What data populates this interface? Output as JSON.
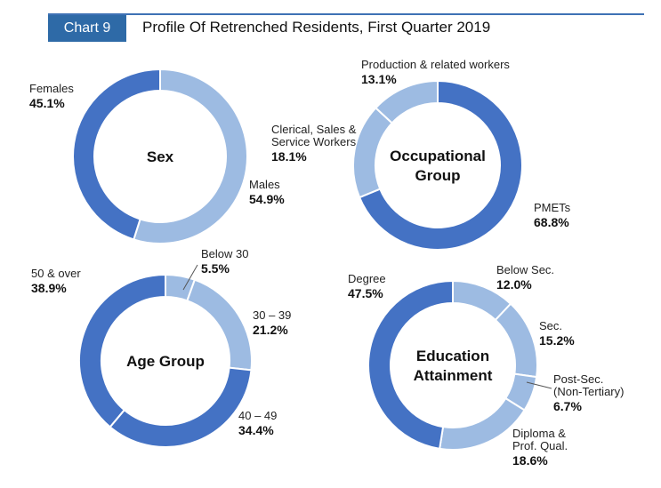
{
  "header": {
    "badge": "Chart 9",
    "title": "Profile Of Retrenched Residents, First Quarter 2019"
  },
  "colors": {
    "dark": "#4472c4",
    "light": "#9dbbe2",
    "accent": "#2e6aa7"
  },
  "chart_data": [
    {
      "type": "pie",
      "center_label": [
        "Sex"
      ],
      "slices": [
        {
          "label": [
            "Males"
          ],
          "value": 54.9,
          "display": "54.9%",
          "color": "#9dbbe2"
        },
        {
          "label": [
            "Females"
          ],
          "value": 45.1,
          "display": "45.1%",
          "color": "#4472c4"
        }
      ]
    },
    {
      "type": "pie",
      "center_label": [
        "Occupational",
        "Group"
      ],
      "slices": [
        {
          "label": [
            "PMETs"
          ],
          "value": 68.8,
          "display": "68.8%",
          "color": "#4472c4"
        },
        {
          "label": [
            "Clerical, Sales &",
            "Service Workers"
          ],
          "value": 18.1,
          "display": "18.1%",
          "color": "#9dbbe2"
        },
        {
          "label": [
            "Production & related workers"
          ],
          "value": 13.1,
          "display": "13.1%",
          "color": "#9dbbe2"
        }
      ]
    },
    {
      "type": "pie",
      "center_label": [
        "Age Group"
      ],
      "slices": [
        {
          "label": [
            "Below 30"
          ],
          "value": 5.5,
          "display": "5.5%",
          "color": "#9dbbe2"
        },
        {
          "label": [
            "30 – 39"
          ],
          "value": 21.2,
          "display": "21.2%",
          "color": "#9dbbe2"
        },
        {
          "label": [
            "40 – 49"
          ],
          "value": 34.4,
          "display": "34.4%",
          "color": "#4472c4"
        },
        {
          "label": [
            "50 & over"
          ],
          "value": 38.9,
          "display": "38.9%",
          "color": "#4472c4"
        }
      ]
    },
    {
      "type": "pie",
      "center_label": [
        "Education",
        "Attainment"
      ],
      "slices": [
        {
          "label": [
            "Below Sec."
          ],
          "value": 12.0,
          "display": "12.0%",
          "color": "#9dbbe2"
        },
        {
          "label": [
            "Sec."
          ],
          "value": 15.2,
          "display": "15.2%",
          "color": "#9dbbe2"
        },
        {
          "label": [
            "Post-Sec.",
            "(Non-Tertiary)"
          ],
          "value": 6.7,
          "display": "6.7%",
          "color": "#9dbbe2"
        },
        {
          "label": [
            "Diploma &",
            "Prof. Qual."
          ],
          "value": 18.6,
          "display": "18.6%",
          "color": "#9dbbe2"
        },
        {
          "label": [
            "Degree"
          ],
          "value": 47.5,
          "display": "47.5%",
          "color": "#4472c4"
        }
      ]
    }
  ]
}
